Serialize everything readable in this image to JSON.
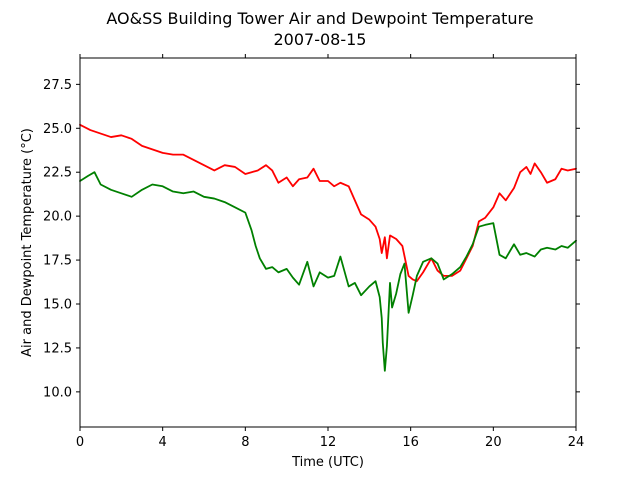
{
  "chart_data": {
    "type": "line",
    "title": "AO&SS Building Tower Air and Dewpoint Temperature",
    "subtitle": "2007-08-15",
    "xlabel": "Time (UTC)",
    "ylabel": "Air and Dewpoint Temperature (°C)",
    "xlim": [
      0,
      24
    ],
    "ylim": [
      8,
      29
    ],
    "xticks": [
      0,
      4,
      8,
      12,
      16,
      20,
      24
    ],
    "yticks": [
      10.0,
      12.5,
      15.0,
      17.5,
      20.0,
      22.5,
      25.0,
      27.5
    ],
    "xtick_labels": [
      "0",
      "4",
      "8",
      "12",
      "16",
      "20",
      "24"
    ],
    "ytick_labels": [
      "10.0",
      "12.5",
      "15.0",
      "17.5",
      "20.0",
      "22.5",
      "25.0",
      "27.5"
    ],
    "grid": false,
    "series": [
      {
        "color": "#ff0000",
        "x": [
          0,
          0.5,
          1,
          1.5,
          2,
          2.5,
          3,
          3.5,
          4,
          4.5,
          5,
          5.5,
          6,
          6.5,
          7,
          7.5,
          8,
          8.3,
          8.6,
          9,
          9.3,
          9.6,
          10,
          10.3,
          10.6,
          11,
          11.3,
          11.6,
          12,
          12.3,
          12.6,
          13,
          13.3,
          13.6,
          14,
          14.3,
          14.5,
          14.6,
          14.75,
          14.85,
          15,
          15.3,
          15.6,
          15.9,
          16.1,
          16.3,
          16.6,
          17,
          17.3,
          17.6,
          18,
          18.4,
          18.7,
          19,
          19.3,
          19.6,
          20,
          20.3,
          20.6,
          21,
          21.3,
          21.6,
          21.8,
          22,
          22.3,
          22.6,
          23,
          23.3,
          23.6,
          24
        ],
        "values": [
          25.2,
          24.9,
          24.7,
          24.5,
          24.6,
          24.4,
          24.0,
          23.8,
          23.6,
          23.5,
          23.5,
          23.2,
          22.9,
          22.6,
          22.9,
          22.8,
          22.4,
          22.5,
          22.6,
          22.9,
          22.6,
          21.9,
          22.2,
          21.7,
          22.1,
          22.2,
          22.7,
          22.0,
          22.0,
          21.7,
          21.9,
          21.7,
          20.9,
          20.1,
          19.8,
          19.4,
          18.7,
          17.9,
          18.8,
          17.6,
          18.9,
          18.7,
          18.3,
          16.6,
          16.4,
          16.3,
          16.8,
          17.6,
          16.9,
          16.6,
          16.6,
          16.9,
          17.6,
          18.3,
          19.7,
          19.9,
          20.5,
          21.3,
          20.9,
          21.6,
          22.5,
          22.8,
          22.4,
          23.0,
          22.5,
          21.9,
          22.1,
          22.7,
          22.6,
          22.7
        ]
      },
      {
        "color": "#008000",
        "x": [
          0,
          0.4,
          0.7,
          1,
          1.5,
          2,
          2.5,
          3,
          3.5,
          4,
          4.5,
          5,
          5.5,
          6,
          6.5,
          7,
          7.5,
          8,
          8.3,
          8.5,
          8.7,
          9,
          9.3,
          9.6,
          10,
          10.3,
          10.6,
          11,
          11.3,
          11.6,
          12,
          12.3,
          12.6,
          13,
          13.3,
          13.6,
          14,
          14.3,
          14.5,
          14.6,
          14.65,
          14.75,
          14.85,
          15,
          15.1,
          15.3,
          15.5,
          15.7,
          15.9,
          16.1,
          16.3,
          16.6,
          17,
          17.3,
          17.6,
          18,
          18.4,
          18.7,
          19,
          19.3,
          19.6,
          20,
          20.3,
          20.6,
          21,
          21.3,
          21.6,
          22,
          22.3,
          22.6,
          23,
          23.3,
          23.6,
          24
        ],
        "values": [
          22.0,
          22.3,
          22.5,
          21.8,
          21.5,
          21.3,
          21.1,
          21.5,
          21.8,
          21.7,
          21.4,
          21.3,
          21.4,
          21.1,
          21.0,
          20.8,
          20.5,
          20.2,
          19.2,
          18.3,
          17.6,
          17.0,
          17.1,
          16.8,
          17.0,
          16.5,
          16.1,
          17.4,
          16.0,
          16.8,
          16.5,
          16.6,
          17.7,
          16.0,
          16.2,
          15.5,
          16.0,
          16.3,
          15.4,
          14.2,
          12.8,
          11.2,
          12.6,
          16.2,
          14.8,
          15.6,
          16.7,
          17.3,
          14.5,
          15.5,
          16.6,
          17.4,
          17.6,
          17.3,
          16.4,
          16.7,
          17.1,
          17.7,
          18.4,
          19.4,
          19.5,
          19.6,
          17.8,
          17.6,
          18.4,
          17.8,
          17.9,
          17.7,
          18.1,
          18.2,
          18.1,
          18.3,
          18.2,
          18.6
        ]
      }
    ]
  }
}
